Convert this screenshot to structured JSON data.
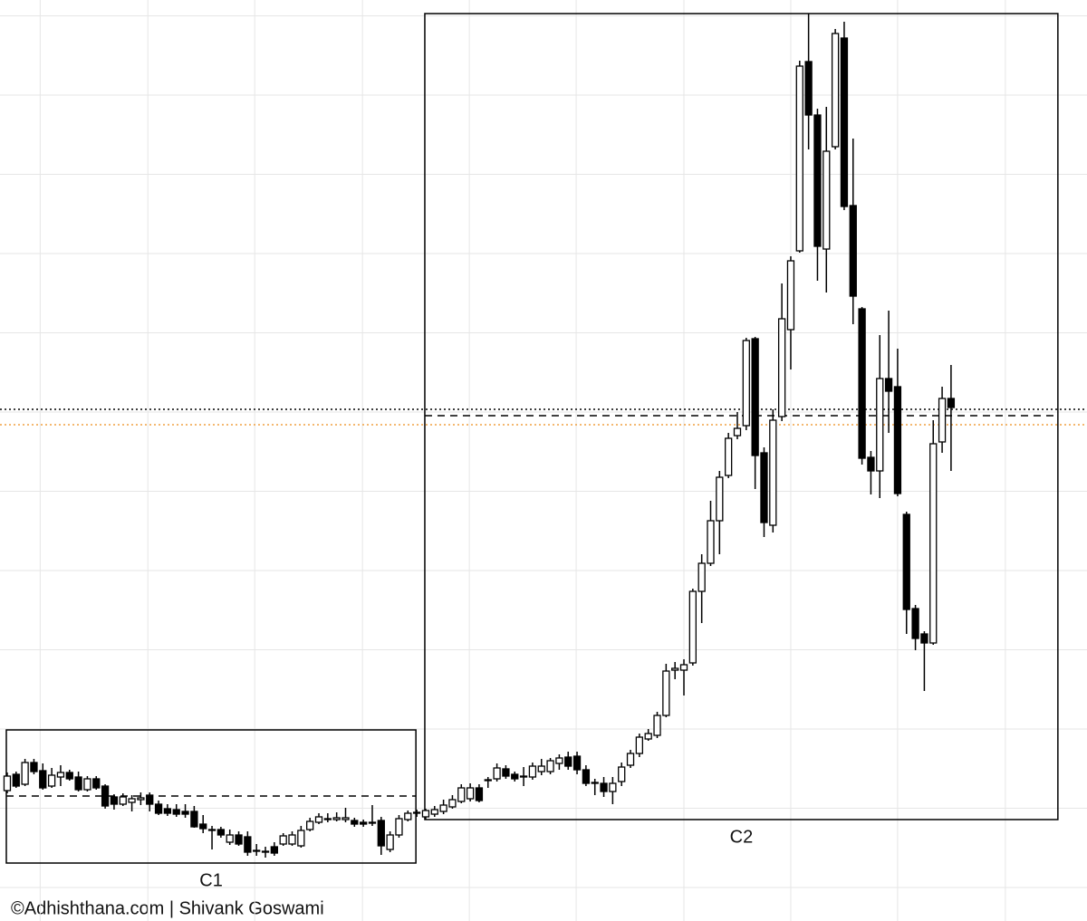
{
  "chart_data": {
    "type": "candlestick",
    "open": [
      12.7,
      14.5,
      13.4,
      15.8,
      14.9,
      13.2,
      14.2,
      14.7,
      14.2,
      12.8,
      14.0,
      13.2,
      12.0,
      11.2,
      11.4,
      11.7,
      12.2,
      11.2,
      10.7,
      10.6,
      10.4,
      10.4,
      9.0,
      8.4,
      8.4,
      7.0,
      7.8,
      7.6,
      6.0,
      5.9,
      6.5,
      6.8,
      6.8,
      6.6,
      8.4,
      9.2,
      9.5,
      9.5,
      9.5,
      9.4,
      9.2,
      9.2,
      9.4,
      6.2,
      7.8,
      9.5,
      10.2,
      9.8,
      10.1,
      10.4,
      10.9,
      11.5,
      11.8,
      13.0,
      13.8,
      14.0,
      15.1,
      14.5,
      14.2,
      14.2,
      14.8,
      14.8,
      15.7,
      16.4,
      16.5,
      15.0,
      13.6,
      13.5,
      12.6,
      13.7,
      15.5,
      16.8,
      18.4,
      18.8,
      21.0,
      26.0,
      26.0,
      26.8,
      34.7,
      37.8,
      42.5,
      47.5,
      51.9,
      53.0,
      62.6,
      50.0,
      42.0,
      54.0,
      63.6,
      72.3,
      93.2,
      87.3,
      72.5,
      83.8,
      95.8,
      77.3,
      65.9,
      49.5,
      48.0,
      58.2,
      57.3,
      43.2,
      32.8,
      30.0,
      29.0,
      51.2,
      56.0
    ],
    "high": [
      14.7,
      14.8,
      16.2,
      16.2,
      15.7,
      15.2,
      15.5,
      15.0,
      14.8,
      14.3,
      14.3,
      13.4,
      12.3,
      12.4,
      12.2,
      12.5,
      12.5,
      11.6,
      11.2,
      11.2,
      11.2,
      11.0,
      10.0,
      8.8,
      8.7,
      8.4,
      8.2,
      8.2,
      6.8,
      6.5,
      7.0,
      8.0,
      8.2,
      8.8,
      9.7,
      10.2,
      10.2,
      10.3,
      10.8,
      9.7,
      9.5,
      11.1,
      9.8,
      8.2,
      10.0,
      10.5,
      10.6,
      10.7,
      11.0,
      11.7,
      12.2,
      13.4,
      13.5,
      13.4,
      14.2,
      15.7,
      15.5,
      14.8,
      15.3,
      15.8,
      16.2,
      16.3,
      16.7,
      17.0,
      17.0,
      15.5,
      14.0,
      14.2,
      14.2,
      15.8,
      17.2,
      19.0,
      19.5,
      21.4,
      26.7,
      26.9,
      27.2,
      35.0,
      38.8,
      44.7,
      48.0,
      52.2,
      54.5,
      62.7,
      62.8,
      50.6,
      54.8,
      68.7,
      71.7,
      93.3,
      98.5,
      88.0,
      88.2,
      96.8,
      97.6,
      84.7,
      66.1,
      50.2,
      63.0,
      65.7,
      61.5,
      43.5,
      33.2,
      30.3,
      53.6,
      57.3,
      59.7
    ],
    "low": [
      12.4,
      13.0,
      13.2,
      14.5,
      12.8,
      13.0,
      13.2,
      13.8,
      12.6,
      12.6,
      12.8,
      10.7,
      10.6,
      11.0,
      10.4,
      11.1,
      10.4,
      10.0,
      9.9,
      9.8,
      9.7,
      8.6,
      8.0,
      6.2,
      7.5,
      6.7,
      6.6,
      5.5,
      5.5,
      5.3,
      5.5,
      6.6,
      6.6,
      6.4,
      8.2,
      9.0,
      9.2,
      9.3,
      9.2,
      8.7,
      8.7,
      8.8,
      5.6,
      5.9,
      7.5,
      9.3,
      9.8,
      9.5,
      9.8,
      10.1,
      10.7,
      11.3,
      11.5,
      11.4,
      13.0,
      13.7,
      14.0,
      13.7,
      13.2,
      13.9,
      14.4,
      14.5,
      15.0,
      15.0,
      14.5,
      13.2,
      12.2,
      12.0,
      11.2,
      13.2,
      15.2,
      16.4,
      18.2,
      18.5,
      20.8,
      25.0,
      23.2,
      26.5,
      31.2,
      37.5,
      38.8,
      47.2,
      51.5,
      52.5,
      46.0,
      40.7,
      41.2,
      53.5,
      59.2,
      72.1,
      83.5,
      69.0,
      67.7,
      83.5,
      76.8,
      64.2,
      48.7,
      45.4,
      45.0,
      52.2,
      45.2,
      30.0,
      28.2,
      23.7,
      28.8,
      50.0,
      48.0
    ],
    "close": [
      14.3,
      13.2,
      15.8,
      14.8,
      13.0,
      14.4,
      14.7,
      14.0,
      12.8,
      14.0,
      13.0,
      11.0,
      11.2,
      12.0,
      11.8,
      11.9,
      11.2,
      10.2,
      10.2,
      10.1,
      10.1,
      8.7,
      8.5,
      8.3,
      7.8,
      7.8,
      6.8,
      5.9,
      6.1,
      6.0,
      5.8,
      7.7,
      7.8,
      8.3,
      9.3,
      9.8,
      9.6,
      9.7,
      9.7,
      9.0,
      9.0,
      9.1,
      6.6,
      7.8,
      9.6,
      10.2,
      10.3,
      10.5,
      10.6,
      11.1,
      11.7,
      13.0,
      13.0,
      11.6,
      13.9,
      15.2,
      14.3,
      14.0,
      14.3,
      15.4,
      15.4,
      16.0,
      16.3,
      15.4,
      15.0,
      13.5,
      13.5,
      12.6,
      13.5,
      15.3,
      16.8,
      18.6,
      19.0,
      21.0,
      25.9,
      26.2,
      26.6,
      34.7,
      37.8,
      42.5,
      47.3,
      51.6,
      52.7,
      62.4,
      49.7,
      42.3,
      53.6,
      64.8,
      71.2,
      92.7,
      87.3,
      72.8,
      83.3,
      96.3,
      77.2,
      67.3,
      49.4,
      48.0,
      58.2,
      56.8,
      45.5,
      32.7,
      29.5,
      29.0,
      51.0,
      56.0,
      55.0
    ],
    "up_fill": "#ffffff",
    "down_fill": "#000000",
    "candle_stroke": "#000000",
    "xlim": [
      -0.81,
      121.27
    ],
    "ylim": [
      0,
      100
    ],
    "xticks": [
      3.7,
      15.8,
      27.8,
      39.9,
      51.9,
      63.9,
      76.0,
      88.0,
      100.0,
      112.1
    ],
    "yticks": [
      98.25,
      89.5,
      80.75,
      72,
      63.25,
      54.5,
      45.75,
      37,
      28.25,
      19.5,
      10.75,
      2
    ],
    "grid": true,
    "boxes": [
      {
        "label": "C1",
        "x": [
          -0.1,
          45.9
        ],
        "y": [
          4.7,
          19.4
        ],
        "level": 12.1
      },
      {
        "label": "C2",
        "x": [
          46.9,
          118.0
        ],
        "y": [
          9.5,
          98.5
        ],
        "level": 54.1
      }
    ],
    "hlines": [
      {
        "value": 54.8,
        "color": "#000000",
        "style": "dotted"
      },
      {
        "value": 53.1,
        "color": "#f0a040",
        "style": "dotted"
      }
    ]
  },
  "credit": "©Adhishthana.com | Shivank Goswami"
}
